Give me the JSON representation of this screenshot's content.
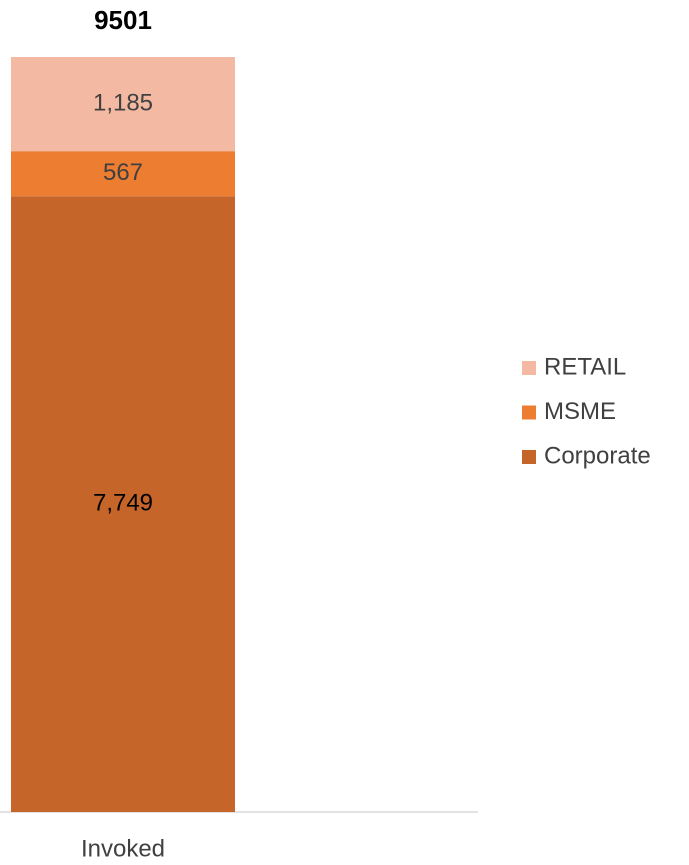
{
  "chart_data": {
    "type": "stacked_bar",
    "total": 9501,
    "categories": [
      "Invoked"
    ],
    "series": [
      {
        "name": "Corporate",
        "color": "#c5652a",
        "values": [
          7749
        ],
        "value_labels": [
          "7,749"
        ]
      },
      {
        "name": "MSME",
        "color": "#ed7d31",
        "values": [
          567
        ],
        "value_labels": [
          "567"
        ]
      },
      {
        "name": "RETAIL",
        "color": "#f4b9a2",
        "values": [
          1185
        ],
        "value_labels": [
          "1,185"
        ]
      }
    ],
    "legend": "right"
  }
}
